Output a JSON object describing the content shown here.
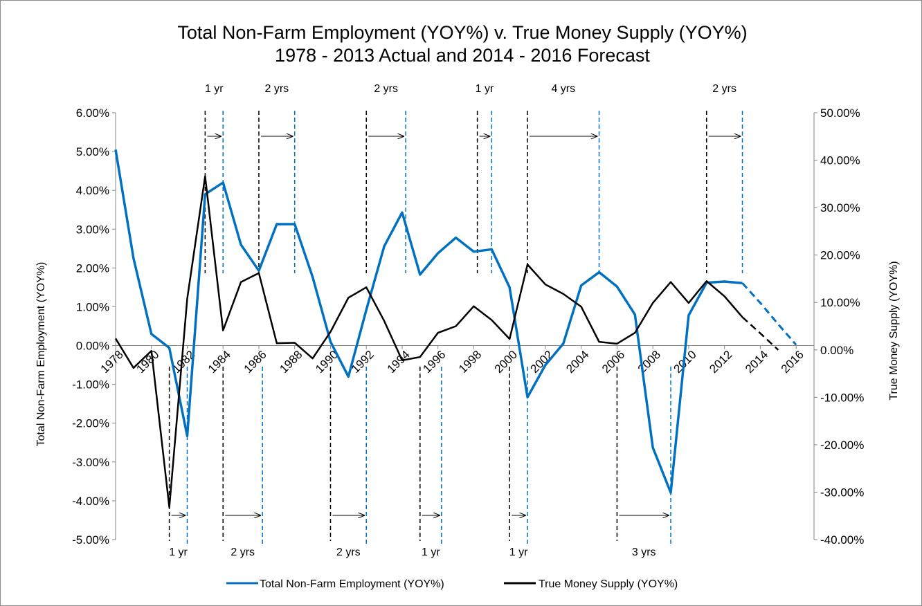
{
  "chart_data": {
    "type": "line",
    "title": "Total Non-Farm Employment (YOY%) v. True Money  Supply (YOY%)",
    "subtitle": "1978 - 2013 Actual and 2014 - 2016 Forecast",
    "ylabel_left": "Total Non-Farm Employment (YOY%)",
    "ylabel_right": "True Money Supply (YOY%)",
    "ylim_left": [
      -5,
      6
    ],
    "ylim_right": [
      -40,
      50
    ],
    "yticks_left": [
      "6.00%",
      "5.00%",
      "4.00%",
      "3.00%",
      "2.00%",
      "1.00%",
      "0.00%",
      "-1.00%",
      "-2.00%",
      "-3.00%",
      "-4.00%",
      "-5.00%"
    ],
    "yticks_right": [
      "50.00%",
      "40.00%",
      "30.00%",
      "20.00%",
      "10.00%",
      "0.00%",
      "-10.00%",
      "-20.00%",
      "-30.00%",
      "-40.00%"
    ],
    "xticks": [
      "1978",
      "1980",
      "1982",
      "1984",
      "1986",
      "1988",
      "1990",
      "1992",
      "1994",
      "1996",
      "1998",
      "2000",
      "2002",
      "2004",
      "2006",
      "2008",
      "2010",
      "2012",
      "2014",
      "2016"
    ],
    "grid": false,
    "legend_position": "bottom",
    "series": [
      {
        "name": "Total Non-Farm Employment (YOY%)",
        "axis": "left",
        "color": "#0070c0",
        "x": [
          1978,
          1979,
          1980,
          1981,
          1982,
          1983,
          1984,
          1985,
          1986,
          1987,
          1988,
          1989,
          1990,
          1991,
          1992,
          1993,
          1994,
          1995,
          1996,
          1997,
          1998,
          1999,
          2000,
          2001,
          2002,
          2003,
          2004,
          2005,
          2006,
          2007,
          2008,
          2009,
          2010,
          2011,
          2012,
          2013
        ],
        "values": [
          5.05,
          2.25,
          0.3,
          -0.06,
          -2.33,
          3.9,
          4.2,
          2.6,
          1.93,
          3.13,
          3.13,
          1.77,
          0.1,
          -0.8,
          0.92,
          2.56,
          3.43,
          1.83,
          2.38,
          2.78,
          2.42,
          2.48,
          1.5,
          -1.33,
          -0.5,
          0.05,
          1.55,
          1.89,
          1.52,
          0.8,
          -2.63,
          -3.79,
          0.78,
          1.62,
          1.65,
          1.61
        ],
        "forecast_x": [
          2013,
          2014,
          2015,
          2016
        ],
        "forecast_values": [
          1.61,
          1.1,
          0.55,
          0.02
        ]
      },
      {
        "name": "True Money Supply (YOY%)",
        "axis": "right",
        "color": "#000000",
        "x": [
          1978,
          1979,
          1980,
          1981,
          1982,
          1983,
          1984,
          1985,
          1986,
          1987,
          1988,
          1989,
          1990,
          1991,
          1992,
          1993,
          1994,
          1995,
          1996,
          1997,
          1998,
          1999,
          2000,
          2001,
          2002,
          2003,
          2004,
          2005,
          2006,
          2007,
          2008,
          2009,
          2010,
          2011,
          2012,
          2013
        ],
        "values": [
          2.4,
          -3.8,
          -0.2,
          -33.2,
          10.8,
          36.6,
          4.1,
          14.3,
          16.2,
          1.4,
          1.5,
          -1.8,
          3.8,
          11.0,
          13.2,
          6.1,
          -2.2,
          -1.5,
          3.6,
          5.0,
          9.2,
          6.3,
          2.3,
          18.0,
          13.8,
          11.8,
          9.1,
          1.7,
          1.3,
          3.6,
          9.9,
          14.3,
          9.9,
          14.5,
          11.3,
          6.9
        ],
        "forecast_x": [
          2013,
          2014,
          2015
        ],
        "forecast_values": [
          6.9,
          3.5,
          0.0
        ]
      }
    ],
    "annotations_top": [
      {
        "label": "1 yr",
        "from": 1983.0,
        "to": 1984.0
      },
      {
        "label": "2 yrs",
        "from": 1986.0,
        "to": 1988.0
      },
      {
        "label": "2 yrs",
        "from": 1992.0,
        "to": 1994.2
      },
      {
        "label": "1 yr",
        "from": 1998.2,
        "to": 1999.0
      },
      {
        "label": "4 yrs",
        "from": 2001.0,
        "to": 2005.0
      },
      {
        "label": "2 yrs",
        "from": 2011.0,
        "to": 2013.0
      }
    ],
    "annotations_bottom": [
      {
        "label": "1 yr",
        "from": 1981.0,
        "to": 1982.0
      },
      {
        "label": "2 yrs",
        "from": 1984.0,
        "to": 1986.2
      },
      {
        "label": "2 yrs",
        "from": 1990.0,
        "to": 1992.0
      },
      {
        "label": "1 yr",
        "from": 1995.0,
        "to": 1996.2
      },
      {
        "label": "1 yr",
        "from": 2000.0,
        "to": 2001.0
      },
      {
        "label": "3 yrs",
        "from": 2006.0,
        "to": 2009.0
      }
    ]
  }
}
